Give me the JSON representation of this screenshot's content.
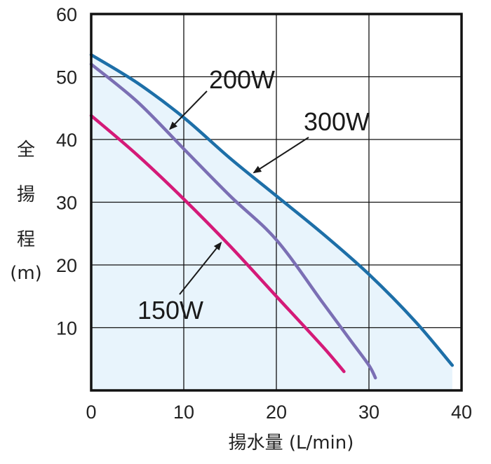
{
  "chart_data": {
    "type": "line",
    "xlabel": "揚水量 (L/min)",
    "ylabel_lines": [
      "全",
      "揚",
      "程",
      "(m)"
    ],
    "xlim": [
      0,
      40
    ],
    "ylim": [
      0,
      60
    ],
    "x_ticks": [
      0,
      10,
      20,
      30,
      40
    ],
    "y_ticks": [
      10,
      20,
      30,
      40,
      50,
      60
    ],
    "grid": true,
    "shaded_region": {
      "under_series": "300W",
      "color": "#e8f4fc"
    },
    "series": [
      {
        "name": "300W",
        "color": "#1d6fa8",
        "x": [
          0,
          5,
          10,
          15,
          20,
          25,
          30,
          35,
          39
        ],
        "y": [
          53.5,
          49,
          43.5,
          37,
          31,
          25,
          18.5,
          11,
          4
        ]
      },
      {
        "name": "200W",
        "color": "#7b6fb4",
        "x": [
          0,
          5,
          10,
          15,
          20,
          25,
          28,
          30,
          30.7
        ],
        "y": [
          52,
          46,
          38.5,
          31,
          24,
          14,
          8,
          4,
          2
        ]
      },
      {
        "name": "150W",
        "color": "#d41a78",
        "x": [
          0,
          5,
          10,
          15,
          20,
          25,
          27.3
        ],
        "y": [
          43.8,
          37.5,
          30.5,
          23,
          15,
          7,
          3
        ]
      }
    ],
    "annotations": [
      {
        "text": "200W",
        "series": "200W"
      },
      {
        "text": "300W",
        "series": "300W"
      },
      {
        "text": "150W",
        "series": "150W"
      }
    ]
  }
}
